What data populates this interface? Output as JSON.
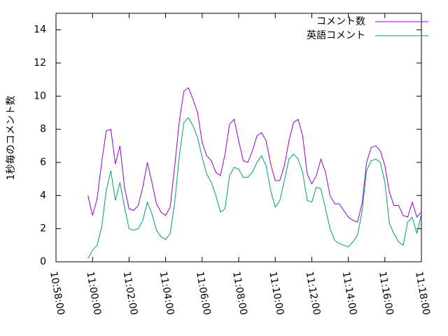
{
  "chart_data": {
    "type": "line",
    "ylabel": "1秒毎のコメント数",
    "x": [
      "10:59:45",
      "11:00:00",
      "11:00:15",
      "11:00:30",
      "11:00:45",
      "11:01:00",
      "11:01:15",
      "11:01:30",
      "11:01:45",
      "11:02:00",
      "11:02:15",
      "11:02:30",
      "11:02:45",
      "11:03:00",
      "11:03:15",
      "11:03:30",
      "11:03:45",
      "11:04:00",
      "11:04:15",
      "11:04:30",
      "11:04:45",
      "11:05:00",
      "11:05:15",
      "11:05:30",
      "11:05:45",
      "11:06:00",
      "11:06:15",
      "11:06:30",
      "11:06:45",
      "11:07:00",
      "11:07:15",
      "11:07:30",
      "11:07:45",
      "11:08:00",
      "11:08:15",
      "11:08:30",
      "11:08:45",
      "11:09:00",
      "11:09:15",
      "11:09:30",
      "11:09:45",
      "11:10:00",
      "11:10:15",
      "11:10:30",
      "11:10:45",
      "11:11:00",
      "11:11:15",
      "11:11:30",
      "11:11:45",
      "11:12:00",
      "11:12:15",
      "11:12:30",
      "11:12:45",
      "11:13:00",
      "11:13:15",
      "11:13:30",
      "11:13:45",
      "11:14:00",
      "11:14:15",
      "11:14:30",
      "11:14:45",
      "11:15:00",
      "11:15:15",
      "11:15:30",
      "11:15:45",
      "11:16:00",
      "11:16:15",
      "11:16:30",
      "11:16:45",
      "11:17:00",
      "11:17:15",
      "11:17:30",
      "11:17:45",
      "11:18:00"
    ],
    "series": [
      {
        "name": "コメント数",
        "color": "#9400d3",
        "values": [
          4.0,
          2.8,
          3.8,
          6.0,
          7.9,
          8.0,
          5.9,
          7.0,
          4.5,
          3.2,
          3.1,
          3.4,
          4.5,
          6.0,
          4.8,
          3.5,
          3.0,
          2.8,
          3.3,
          5.8,
          8.5,
          10.3,
          10.5,
          9.8,
          9.0,
          7.2,
          6.4,
          6.1,
          5.4,
          5.2,
          6.5,
          8.3,
          8.6,
          7.3,
          6.1,
          6.0,
          6.7,
          7.6,
          7.8,
          7.3,
          5.9,
          4.9,
          4.9,
          5.8,
          7.3,
          8.4,
          8.6,
          7.6,
          5.3,
          4.7,
          5.2,
          6.2,
          5.4,
          4.0,
          3.5,
          3.5,
          3.1,
          2.7,
          2.5,
          2.4,
          3.5,
          6.0,
          6.9,
          7.0,
          6.7,
          5.8,
          4.2,
          3.4,
          3.4,
          2.8,
          2.7,
          3.6,
          2.7,
          3.0
        ]
      },
      {
        "name": "英語コメント",
        "color": "#009e73",
        "values": [
          0.2,
          0.7,
          1.0,
          2.1,
          4.3,
          5.5,
          3.7,
          4.8,
          3.3,
          2.0,
          1.9,
          2.0,
          2.5,
          3.6,
          2.9,
          1.9,
          1.5,
          1.35,
          1.7,
          3.6,
          6.4,
          8.4,
          8.7,
          8.2,
          7.5,
          6.3,
          5.3,
          4.8,
          4.0,
          3.0,
          3.2,
          5.2,
          5.7,
          5.6,
          5.1,
          5.1,
          5.4,
          6.0,
          6.4,
          5.8,
          4.3,
          3.3,
          3.7,
          4.9,
          6.2,
          6.5,
          6.2,
          5.4,
          3.7,
          3.6,
          4.5,
          4.4,
          3.2,
          2.0,
          1.3,
          1.1,
          1.0,
          0.9,
          1.2,
          1.6,
          3.0,
          5.5,
          6.1,
          6.2,
          6.0,
          4.8,
          2.3,
          1.7,
          1.2,
          1.0,
          2.4,
          2.7,
          1.7,
          2.9
        ]
      }
    ],
    "xlim": [
      "10:58:00",
      "11:18:00"
    ],
    "xticks": [
      "10:58:00",
      "11:00:00",
      "11:02:00",
      "11:04:00",
      "11:06:00",
      "11:08:00",
      "11:10:00",
      "11:12:00",
      "11:14:00",
      "11:16:00",
      "11:18:00"
    ],
    "ylim": [
      0,
      15
    ],
    "yticks": [
      0,
      2,
      4,
      6,
      8,
      10,
      12,
      14
    ],
    "legend": "upper right"
  }
}
